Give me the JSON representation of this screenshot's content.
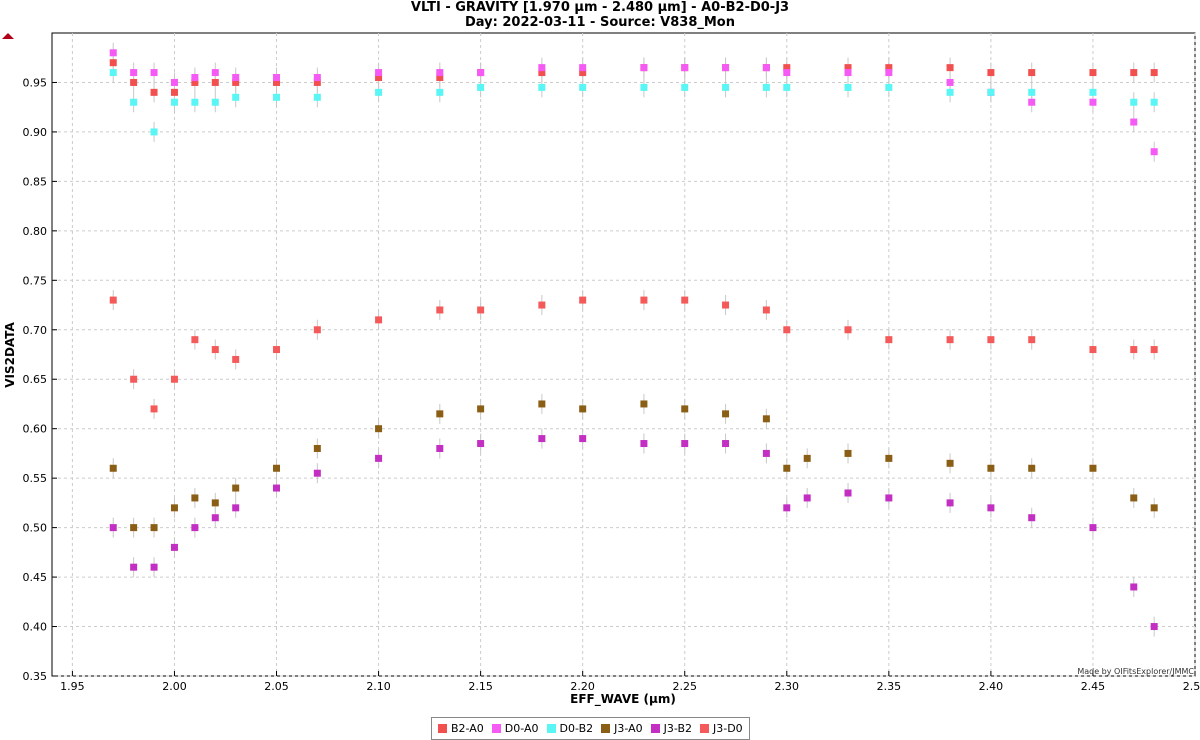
{
  "title": "VLTI - GRAVITY [1.970 µm - 2.480 µm] - A0-B2-D0-J3",
  "subtitle": "Day: 2022-03-11 - Source: V838_Mon",
  "credit": "Made by OIFitsExplorer/JMMC",
  "chart_data": {
    "type": "scatter",
    "title": "VLTI - GRAVITY [1.970 µm - 2.480 µm] - A0-B2-D0-J3",
    "subtitle": "Day: 2022-03-11 - Source: V838_Mon",
    "xlabel": "EFF_WAVE (µm)",
    "ylabel": "VIS2DATA",
    "xlim": [
      1.94,
      2.5
    ],
    "ylim": [
      0.35,
      1.0
    ],
    "xticks": [
      "1.95",
      "2.00",
      "2.05",
      "2.10",
      "2.15",
      "2.20",
      "2.25",
      "2.30",
      "2.35",
      "2.40",
      "2.45",
      "2.50"
    ],
    "yticks": [
      "0.35",
      "0.40",
      "0.45",
      "0.50",
      "0.55",
      "0.60",
      "0.65",
      "0.70",
      "0.75",
      "0.80",
      "0.85",
      "0.90",
      "0.95"
    ],
    "grid": true,
    "legend_position": "bottom",
    "error_bars": true,
    "series": [
      {
        "name": "B2-A0",
        "color": "#f24f4f",
        "x": [
          1.97,
          1.98,
          1.99,
          2.0,
          2.01,
          2.02,
          2.03,
          2.05,
          2.07,
          2.1,
          2.13,
          2.15,
          2.18,
          2.2,
          2.23,
          2.25,
          2.27,
          2.29,
          2.3,
          2.33,
          2.35,
          2.38,
          2.4,
          2.42,
          2.45,
          2.47,
          2.48
        ],
        "y": [
          0.97,
          0.95,
          0.94,
          0.94,
          0.95,
          0.95,
          0.95,
          0.95,
          0.95,
          0.955,
          0.955,
          0.96,
          0.96,
          0.96,
          0.965,
          0.965,
          0.965,
          0.965,
          0.965,
          0.965,
          0.965,
          0.965,
          0.96,
          0.96,
          0.96,
          0.96,
          0.96
        ]
      },
      {
        "name": "D0-A0",
        "color": "#f55af5",
        "x": [
          1.97,
          1.98,
          1.99,
          2.0,
          2.01,
          2.02,
          2.03,
          2.05,
          2.07,
          2.1,
          2.13,
          2.15,
          2.18,
          2.2,
          2.23,
          2.25,
          2.27,
          2.29,
          2.3,
          2.33,
          2.35,
          2.38,
          2.4,
          2.42,
          2.45,
          2.47,
          2.48
        ],
        "y": [
          0.98,
          0.96,
          0.96,
          0.95,
          0.955,
          0.96,
          0.955,
          0.955,
          0.955,
          0.96,
          0.96,
          0.96,
          0.965,
          0.965,
          0.965,
          0.965,
          0.965,
          0.965,
          0.96,
          0.96,
          0.96,
          0.95,
          0.94,
          0.93,
          0.93,
          0.91,
          0.88
        ]
      },
      {
        "name": "D0-B2",
        "color": "#5af5f5",
        "x": [
          1.97,
          1.98,
          1.99,
          2.0,
          2.01,
          2.02,
          2.03,
          2.05,
          2.07,
          2.1,
          2.13,
          2.15,
          2.18,
          2.2,
          2.23,
          2.25,
          2.27,
          2.29,
          2.3,
          2.33,
          2.35,
          2.38,
          2.4,
          2.42,
          2.45,
          2.47,
          2.48
        ],
        "y": [
          0.96,
          0.93,
          0.9,
          0.93,
          0.93,
          0.93,
          0.935,
          0.935,
          0.935,
          0.94,
          0.94,
          0.945,
          0.945,
          0.945,
          0.945,
          0.945,
          0.945,
          0.945,
          0.945,
          0.945,
          0.945,
          0.94,
          0.94,
          0.94,
          0.94,
          0.93,
          0.93
        ]
      },
      {
        "name": "J3-A0",
        "color": "#8b5e16",
        "x": [
          1.97,
          1.98,
          1.99,
          2.0,
          2.01,
          2.02,
          2.03,
          2.05,
          2.07,
          2.1,
          2.13,
          2.15,
          2.18,
          2.2,
          2.23,
          2.25,
          2.27,
          2.29,
          2.3,
          2.31,
          2.33,
          2.35,
          2.38,
          2.4,
          2.42,
          2.45,
          2.47,
          2.48
        ],
        "y": [
          0.56,
          0.5,
          0.5,
          0.52,
          0.53,
          0.525,
          0.54,
          0.56,
          0.58,
          0.6,
          0.615,
          0.62,
          0.625,
          0.62,
          0.625,
          0.62,
          0.615,
          0.61,
          0.56,
          0.57,
          0.575,
          0.57,
          0.565,
          0.56,
          0.56,
          0.56,
          0.53,
          0.52
        ]
      },
      {
        "name": "J3-B2",
        "color": "#c22fc2",
        "x": [
          1.97,
          1.98,
          1.99,
          2.0,
          2.01,
          2.02,
          2.03,
          2.05,
          2.07,
          2.1,
          2.13,
          2.15,
          2.18,
          2.2,
          2.23,
          2.25,
          2.27,
          2.29,
          2.3,
          2.31,
          2.33,
          2.35,
          2.38,
          2.4,
          2.42,
          2.45,
          2.47,
          2.48
        ],
        "y": [
          0.5,
          0.46,
          0.46,
          0.48,
          0.5,
          0.51,
          0.52,
          0.54,
          0.555,
          0.57,
          0.58,
          0.585,
          0.59,
          0.59,
          0.585,
          0.585,
          0.585,
          0.575,
          0.52,
          0.53,
          0.535,
          0.53,
          0.525,
          0.52,
          0.51,
          0.5,
          0.44,
          0.4
        ]
      },
      {
        "name": "J3-D0",
        "color": "#f55a5a",
        "x": [
          1.97,
          1.98,
          1.99,
          2.0,
          2.01,
          2.02,
          2.03,
          2.05,
          2.07,
          2.1,
          2.13,
          2.15,
          2.18,
          2.2,
          2.23,
          2.25,
          2.27,
          2.29,
          2.3,
          2.33,
          2.35,
          2.38,
          2.4,
          2.42,
          2.45,
          2.47,
          2.48
        ],
        "y": [
          0.73,
          0.65,
          0.62,
          0.65,
          0.69,
          0.68,
          0.67,
          0.68,
          0.7,
          0.71,
          0.72,
          0.72,
          0.725,
          0.73,
          0.73,
          0.73,
          0.725,
          0.72,
          0.7,
          0.7,
          0.69,
          0.69,
          0.69,
          0.69,
          0.68,
          0.68,
          0.68
        ]
      }
    ]
  }
}
